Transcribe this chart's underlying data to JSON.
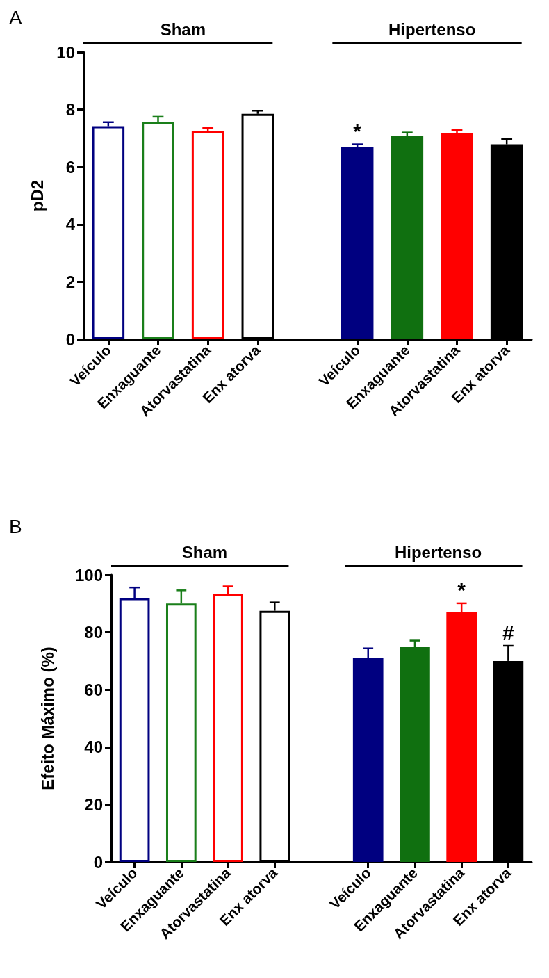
{
  "chart_data": [
    {
      "type": "bar",
      "title": "A",
      "ylabel": "pD2",
      "categories": [
        "Veículo",
        "Enxaguante",
        "Atorvastatina",
        "Enx atorva",
        null,
        "Veículo",
        "Enxaguante",
        "Atorvastatina",
        "Enx atorva"
      ],
      "series": [
        {
          "color": "#ffffff",
          "colors": [
            "#000080",
            "#1a7f1a",
            "#ff0000",
            "#000000",
            null,
            null,
            null,
            null,
            null
          ],
          "values": [
            7.42,
            7.56,
            7.26,
            7.85,
            null,
            null,
            null,
            null,
            null
          ],
          "errors": [
            [
              7.42,
              7.56
            ],
            [
              7.56,
              7.75
            ],
            [
              7.26,
              7.36
            ],
            [
              7.85,
              7.96
            ],
            null,
            null,
            null,
            null,
            null
          ]
        },
        {
          "colors": [
            null,
            null,
            null,
            null,
            null,
            "#000080",
            "#107010",
            "#ff0000",
            "#000000"
          ],
          "values": [
            null,
            null,
            null,
            null,
            null,
            6.69,
            7.09,
            7.18,
            6.79
          ],
          "errors": [
            null,
            null,
            null,
            null,
            null,
            [
              6.69,
              6.79
            ],
            [
              7.09,
              7.2
            ],
            [
              7.18,
              7.29
            ],
            [
              6.79,
              6.98
            ]
          ],
          "value_labels": [
            null,
            null,
            null,
            null,
            null,
            "*",
            null,
            null,
            null
          ]
        }
      ],
      "annotations": [
        "Sham",
        "Hipertenso"
      ],
      "ylim": [
        0,
        10
      ],
      "yticks": [
        0,
        2,
        4,
        6,
        8,
        10
      ],
      "grid": false
    },
    {
      "type": "bar",
      "title": "B",
      "ylabel": "Efeito Máximo (%)",
      "categories": [
        "Veículo",
        "Enxaguante",
        "Atorvastatina",
        "Enx atorva",
        null,
        "Veículo",
        "Enxaguante",
        "Atorvastatina",
        "Enx atorva"
      ],
      "series": [
        {
          "color": "#ffffff",
          "colors": [
            "#000080",
            "#1a7f1a",
            "#ff0000",
            "#000000",
            null,
            null,
            null,
            null,
            null
          ],
          "values": [
            91.9,
            90.0,
            93.4,
            87.5,
            null,
            null,
            null,
            null,
            null
          ],
          "errors": [
            [
              91.9,
              95.6
            ],
            [
              90.0,
              94.6
            ],
            [
              93.4,
              96.0
            ],
            [
              87.5,
              90.4
            ],
            null,
            null,
            null,
            null,
            null
          ]
        },
        {
          "colors": [
            null,
            null,
            null,
            null,
            null,
            "#000080",
            "#107010",
            "#ff0000",
            "#000000"
          ],
          "values": [
            null,
            null,
            null,
            null,
            null,
            71.1,
            74.8,
            87.0,
            70.0
          ],
          "errors": [
            null,
            null,
            null,
            null,
            null,
            [
              71.1,
              74.4
            ],
            [
              74.8,
              77.1
            ],
            [
              87.0,
              90.1
            ],
            [
              70.0,
              75.3
            ]
          ],
          "value_labels": [
            null,
            null,
            null,
            null,
            null,
            null,
            null,
            "*",
            "#"
          ]
        }
      ],
      "annotations": [
        "Sham",
        "Hipertenso"
      ],
      "ylim": [
        0,
        100
      ],
      "yticks": [
        0,
        20,
        40,
        60,
        80,
        100
      ],
      "grid": false
    }
  ]
}
